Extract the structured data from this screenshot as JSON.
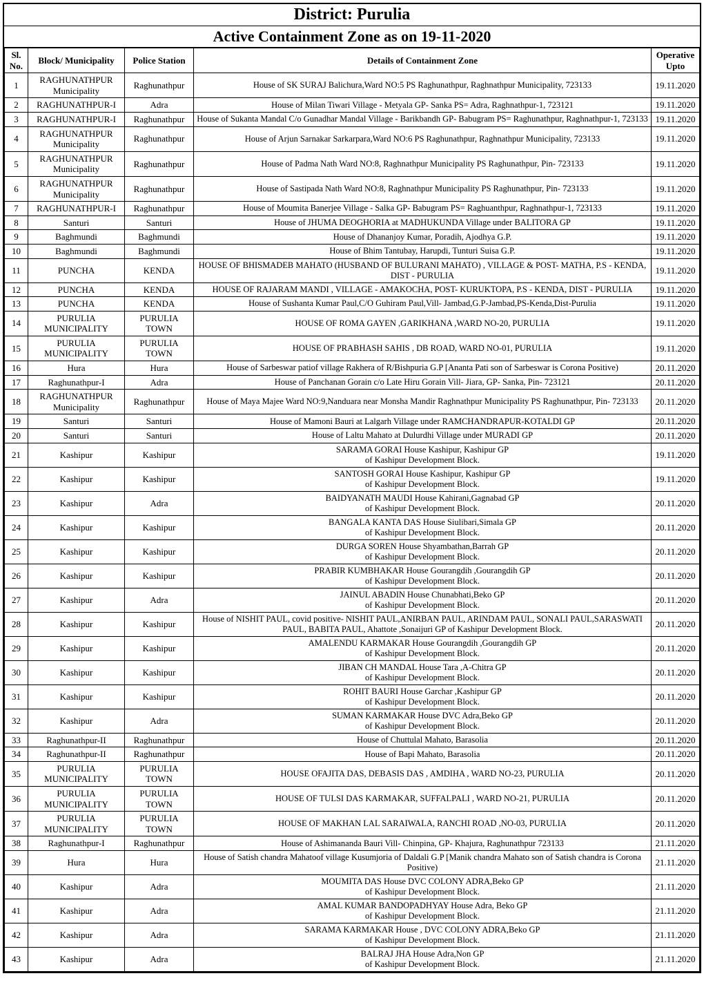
{
  "title": "District: Purulia",
  "subtitle": "Active Containment Zone as on 19-11-2020",
  "headers": {
    "sl": "Sl. No.",
    "block": "Block/ Municipality",
    "ps": "Police Station",
    "details": "Details of Containment Zone",
    "date": "Operative Upto"
  },
  "rows": [
    {
      "sl": "1",
      "block": "RAGHUNATHPUR Municipality",
      "ps": "Raghunathpur",
      "details": "House of SK SURAJ Balichura,Ward NO:5 PS Raghunathpur, Raghnathpur Municipality, 723133",
      "date": "19.11.2020"
    },
    {
      "sl": "2",
      "block": "RAGHUNATHPUR-I",
      "ps": "Adra",
      "details": "House of Milan Tiwari Village - Metyala GP- Sanka PS= Adra,  Raghnathpur-1, 723121",
      "date": "19.11.2020"
    },
    {
      "sl": "3",
      "block": "RAGHUNATHPUR-I",
      "ps": "Raghunathpur",
      "details": "House of Sukanta Mandal C/o Gunadhar Mandal Village - Barikbandh GP- Babugram PS= Raghunathpur, Raghnathpur-1, 723133",
      "date": "19.11.2020"
    },
    {
      "sl": "4",
      "block": "RAGHUNATHPUR Municipality",
      "ps": "Raghunathpur",
      "details": "House of Arjun Sarnakar Sarkarpara,Ward NO:6 PS Raghunathpur, Raghnathpur Municipality, 723133",
      "date": "19.11.2020"
    },
    {
      "sl": "5",
      "block": "RAGHUNATHPUR Municipality",
      "ps": "Raghunathpur",
      "details": "House of Padma Nath Ward NO:8, Raghnathpur Municipality PS Raghunathpur, Pin- 723133",
      "date": "19.11.2020"
    },
    {
      "sl": "6",
      "block": "RAGHUNATHPUR Municipality",
      "ps": "Raghunathpur",
      "details": "House of Sastipada Nath Ward NO:8, Raghnathpur Municipality PS Raghunathpur, Pin- 723133",
      "date": "19.11.2020"
    },
    {
      "sl": "7",
      "block": "RAGHUNATHPUR-I",
      "ps": "Raghunathpur",
      "details": "House of Moumita Banerjee Village - Salka GP- Babugram PS= Raghuanthpur, Raghnathpur-1, 723133",
      "date": "19.11.2020"
    },
    {
      "sl": "8",
      "block": "Santuri",
      "ps": "Santuri",
      "details": "House of JHUMA DEOGHORIA at MADHUKUNDA Village under BALITORA GP",
      "date": "19.11.2020"
    },
    {
      "sl": "9",
      "block": "Baghmundi",
      "ps": "Baghmundi",
      "details": "House of Dhananjoy Kumar, Poradih, Ajodhya G.P.",
      "date": "19.11.2020"
    },
    {
      "sl": "10",
      "block": "Baghmundi",
      "ps": "Baghmundi",
      "details": "House of Bhim Tantubay, Harupdi, Tunturi Suisa G.P.",
      "date": "19.11.2020"
    },
    {
      "sl": "11",
      "block": "PUNCHA",
      "ps": "KENDA",
      "details": "HOUSE OF BHISMADEB MAHATO (HUSBAND OF BULURANI MAHATO) , VILLAGE & POST- MATHA, P.S - KENDA, DIST - PURULIA",
      "date": "19.11.2020"
    },
    {
      "sl": "12",
      "block": "PUNCHA",
      "ps": "KENDA",
      "details": "HOUSE OF RAJARAM MANDI , VILLAGE -  AMAKOCHA, POST- KURUKTOPA, P.S - KENDA, DIST - PURULIA",
      "date": "19.11.2020"
    },
    {
      "sl": "13",
      "block": "PUNCHA",
      "ps": "KENDA",
      "details": "House of Sushanta Kumar Paul,C/O Guhiram Paul,Vill- Jambad,G.P-Jambad,PS-Kenda,Dist-Purulia",
      "date": "19.11.2020"
    },
    {
      "sl": "14",
      "block": "PURULIA MUNICIPALITY",
      "ps": "PURULIA TOWN",
      "details": "HOUSE OF ROMA GAYEN  ,GARIKHANA ,WARD NO-20,   PURULIA",
      "date": "19.11.2020"
    },
    {
      "sl": "15",
      "block": "PURULIA MUNICIPALITY",
      "ps": "PURULIA TOWN",
      "details": "HOUSE OF PRABHASH SAHIS ,  DB ROAD, WARD NO-01, PURULIA",
      "date": "19.11.2020"
    },
    {
      "sl": "16",
      "block": "Hura",
      "ps": "Hura",
      "details": "House of Sarbeswar patiof village Rakhera of R/Bishpuria G.P  [Ananta Pati son of Sarbeswar is Corona Positive)",
      "date": "20.11.2020"
    },
    {
      "sl": "17",
      "block": "Raghunathpur-I",
      "ps": "Adra",
      "details": "House of Panchanan Gorain c/o Late Hiru Gorain Vill- Jiara, GP- Sanka, Pin- 723121",
      "date": "20.11.2020"
    },
    {
      "sl": "18",
      "block": "RAGHUNATHPUR Municipality",
      "ps": "Raghunathpur",
      "details": "House of Maya Majee Ward NO:9,Nanduara near Monsha Mandir  Raghnathpur Municipality PS Raghunathpur, Pin- 723133",
      "date": "20.11.2020"
    },
    {
      "sl": "19",
      "block": "Santuri",
      "ps": "Santuri",
      "details": "House of Mamoni Bauri at Lalgarh Village under RAMCHANDRAPUR-KOTALDI GP",
      "date": "20.11.2020"
    },
    {
      "sl": "20",
      "block": "Santuri",
      "ps": "Santuri",
      "details": "House of Laltu Mahato at Dulurdhi Village under MURADI GP",
      "date": "20.11.2020"
    },
    {
      "sl": "21",
      "block": "Kashipur",
      "ps": "Kashipur",
      "details": "SARAMA GORAI House Kashipur, Kashipur GP\nof Kashipur Development Block.",
      "date": "19.11.2020"
    },
    {
      "sl": "22",
      "block": "Kashipur",
      "ps": "Kashipur",
      "details": "SANTOSH GORAI House Kashipur, Kashipur GP\nof Kashipur Development Block.",
      "date": "19.11.2020"
    },
    {
      "sl": "23",
      "block": "Kashipur",
      "ps": "Adra",
      "details": "BAIDYANATH MAUDI House Kahirani,Gagnabad GP\nof Kashipur Development Block.",
      "date": "20.11.2020"
    },
    {
      "sl": "24",
      "block": "Kashipur",
      "ps": "Kashipur",
      "details": "BANGALA KANTA DAS House Siulibari,Simala  GP\nof Kashipur Development Block.",
      "date": "20.11.2020"
    },
    {
      "sl": "25",
      "block": "Kashipur",
      "ps": "Kashipur",
      "details": "DURGA SOREN House Shyambathan,Barrah GP\nof Kashipur Development Block.",
      "date": "20.11.2020"
    },
    {
      "sl": "26",
      "block": "Kashipur",
      "ps": "Kashipur",
      "details": "PRABIR KUMBHAKAR House Gourangdih ,Gourangdih GP\nof Kashipur Development Block.",
      "date": "20.11.2020"
    },
    {
      "sl": "27",
      "block": "Kashipur",
      "ps": "Adra",
      "details": "JAINUL ABADIN House Chunabhati,Beko GP\nof Kashipur Development Block.",
      "date": "20.11.2020"
    },
    {
      "sl": "28",
      "block": "Kashipur",
      "ps": "Kashipur",
      "details": "House of NISHIT PAUL, covid positive- NISHIT PAUL,ANIRBAN PAUL, ARINDAM PAUL, SONALI PAUL,SARASWATI PAUL, BABITA PAUL,  Ahattote ,Sonaijuri GP of Kashipur Development Block.",
      "date": "20.11.2020"
    },
    {
      "sl": "29",
      "block": "Kashipur",
      "ps": "Kashipur",
      "details": "AMALENDU KARMAKAR House Gourangdih ,Gourangdih GP\nof Kashipur Development Block.",
      "date": "20.11.2020"
    },
    {
      "sl": "30",
      "block": "Kashipur",
      "ps": "Kashipur",
      "details": "JIBAN CH MANDAL House Tara ,A-Chitra GP\nof Kashipur Development Block.",
      "date": "20.11.2020"
    },
    {
      "sl": "31",
      "block": "Kashipur",
      "ps": "Kashipur",
      "details": "ROHIT BAURI House Garchar ,Kashipur GP\nof Kashipur Development Block.",
      "date": "20.11.2020"
    },
    {
      "sl": "32",
      "block": "Kashipur",
      "ps": "Adra",
      "details": "SUMAN KARMAKAR House DVC Adra,Beko  GP\nof Kashipur Development Block.",
      "date": "20.11.2020"
    },
    {
      "sl": "33",
      "block": "Raghunathpur-II",
      "ps": "Raghunathpur",
      "details": "House of Chuttulal Mahato, Barasolia",
      "date": "20.11.2020"
    },
    {
      "sl": "34",
      "block": "Raghunathpur-II",
      "ps": "Raghunathpur",
      "details": "House of Bapi Mahato, Barasolia",
      "date": "20.11.2020"
    },
    {
      "sl": "35",
      "block": "PURULIA MUNICIPALITY",
      "ps": "PURULIA TOWN",
      "details": "HOUSE OFAJITA DAS, DEBASIS DAS , AMDIHA , WARD NO-23,   PURULIA",
      "date": "20.11.2020"
    },
    {
      "sl": "36",
      "block": "PURULIA MUNICIPALITY",
      "ps": "PURULIA TOWN",
      "details": "HOUSE OF TULSI DAS KARMAKAR, SUFFALPALI , WARD NO-21,   PURULIA",
      "date": "20.11.2020"
    },
    {
      "sl": "37",
      "block": "PURULIA MUNICIPALITY",
      "ps": "PURULIA TOWN",
      "details": "HOUSE OF MAKHAN LAL SARAIWALA, RANCHI ROAD ,NO-03,   PURULIA",
      "date": "20.11.2020"
    },
    {
      "sl": "38",
      "block": "Raghunathpur-I",
      "ps": "Raghunathpur",
      "details": "House of Ashimananda Bauri Vill- Chinpina, GP- Khajura, Raghunathpur 723133",
      "date": "21.11.2020"
    },
    {
      "sl": "39",
      "block": "Hura",
      "ps": "Hura",
      "details": "House of Satish chandra Mahatoof village Kusumjoria of Daldali G.P  [Manik chandra Mahato son of Satish chandra is Corona Positive)",
      "date": "21.11.2020"
    },
    {
      "sl": "40",
      "block": "Kashipur",
      "ps": "Adra",
      "details": "MOUMITA DAS House  DVC COLONY  ADRA,Beko GP\nof Kashipur Development Block.",
      "date": "21.11.2020"
    },
    {
      "sl": "41",
      "block": "Kashipur",
      "ps": "Adra",
      "details": "AMAL KUMAR BANDOPADHYAY House Adra, Beko GP\nof Kashipur Development Block.",
      "date": "21.11.2020"
    },
    {
      "sl": "42",
      "block": "Kashipur",
      "ps": "Adra",
      "details": "SARAMA KARMAKAR House , DVC COLONY  ADRA,Beko GP\nof Kashipur Development Block.",
      "date": "21.11.2020"
    },
    {
      "sl": "43",
      "block": "Kashipur",
      "ps": "Adra",
      "details": "BALRAJ JHA House Adra,Non  GP\nof Kashipur Development Block.",
      "date": "21.11.2020"
    }
  ]
}
